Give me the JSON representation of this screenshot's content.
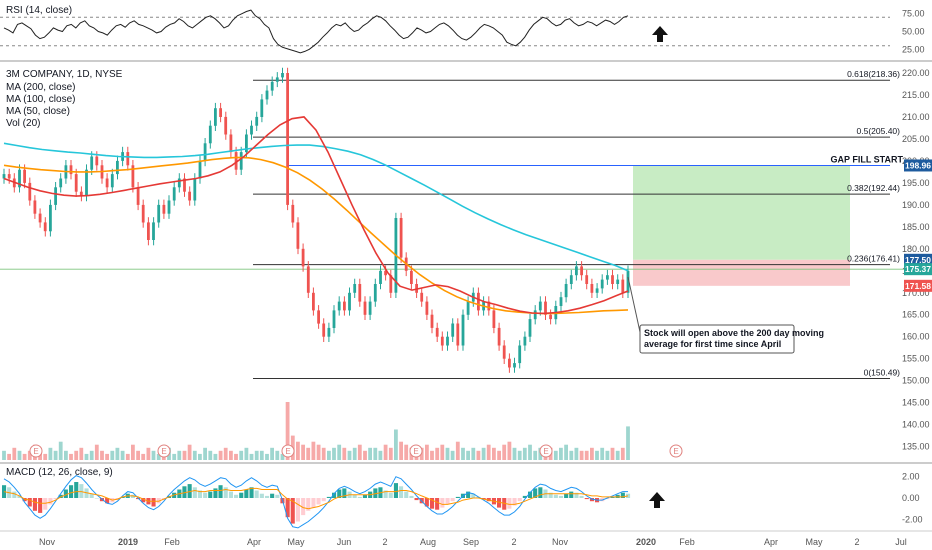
{
  "colors": {
    "up": "#26a69a",
    "down": "#ef5350",
    "ma200": "#26c6da",
    "ma100": "#ff9800",
    "ma50": "#e53935",
    "rsi": "#222222",
    "macd_line": "#2196f3",
    "signal_line": "#ff9800",
    "hline": "#333333",
    "gap_fill": "#2962ff",
    "green_zone": "#c8ecc4",
    "red_zone": "#f9c9cb",
    "text": "#131722",
    "axis": "#555555"
  },
  "icons": [
    "arrow-up-icon",
    "earnings-marker-icon"
  ],
  "chart_data": [
    {
      "type": "line",
      "title": "RSI (14, close)",
      "y_ticks": [
        "75.00",
        "50.00",
        "25.00"
      ],
      "ylim": [
        10,
        90
      ],
      "reference_lines": [
        70,
        30
      ],
      "series": [
        {
          "values": [
            55,
            52,
            48,
            60,
            62,
            58,
            54,
            45,
            40,
            42,
            48,
            55,
            52,
            50,
            58,
            60,
            55,
            62,
            65,
            58,
            55,
            50,
            48,
            45,
            52,
            58,
            60,
            56,
            62,
            65,
            60,
            58,
            55,
            52,
            48,
            50,
            56,
            60,
            62,
            68,
            64,
            58,
            55,
            60,
            65,
            70,
            72,
            68,
            62,
            55,
            58,
            66,
            72,
            75,
            78,
            80,
            72,
            68,
            60,
            55,
            40,
            32,
            28,
            26,
            24,
            22,
            20,
            22,
            25,
            30,
            35,
            42,
            48,
            55,
            60,
            58,
            62,
            55,
            50,
            52,
            58,
            62,
            68,
            72,
            70,
            65,
            58,
            52,
            45,
            40,
            42,
            48,
            55,
            52,
            48,
            50,
            55,
            60,
            62,
            58,
            52,
            45,
            40,
            38,
            42,
            48,
            55,
            60,
            58,
            55,
            50,
            45,
            35,
            32,
            30,
            35,
            42,
            52,
            60,
            65,
            70,
            68,
            62,
            58,
            60,
            66,
            68,
            62,
            58,
            60,
            64,
            62,
            58,
            62,
            66,
            64,
            60,
            64,
            70,
            72
          ]
        }
      ]
    },
    {
      "type": "line",
      "title": "3M COMPANY, 1D, NYSE",
      "legend": [
        "MA (200, close)",
        "MA (100, close)",
        "MA (50, close)",
        "Vol (20)"
      ],
      "x_labels": [
        "Nov",
        "2019",
        "Feb",
        "Apr",
        "May",
        "Jun",
        "2",
        "Aug",
        "Sep",
        "2",
        "Nov",
        "2020",
        "Feb",
        "Apr",
        "May",
        "2",
        "Jul"
      ],
      "y_ticks": [
        "220.00",
        "215.00",
        "210.00",
        "205.00",
        "200.00",
        "195.00",
        "190.00",
        "185.00",
        "180.00",
        "175.00",
        "170.00",
        "165.00",
        "160.00",
        "155.00",
        "150.00",
        "145.00",
        "140.00",
        "135.00"
      ],
      "ylim": [
        131.5,
        222.5
      ],
      "series": [
        {
          "name": "Price",
          "values": [
            197,
            196,
            194,
            198,
            195,
            191,
            188,
            186,
            184,
            190,
            194,
            196,
            199,
            197,
            193,
            192,
            198,
            201,
            199,
            196,
            194,
            197,
            200,
            202,
            199,
            194,
            190,
            186,
            182,
            186,
            190,
            188,
            191,
            194,
            196,
            193,
            191,
            196,
            200,
            204,
            208,
            212,
            210,
            206,
            202,
            198,
            202,
            206,
            208,
            210,
            214,
            216,
            218,
            219,
            220,
            190,
            186,
            180,
            176,
            170,
            166,
            163,
            160,
            162,
            166,
            168,
            166,
            170,
            172,
            168,
            165,
            168,
            172,
            175,
            174,
            170,
            187,
            178,
            175,
            172,
            170,
            168,
            165,
            162,
            160,
            158,
            160,
            163,
            158,
            165,
            168,
            170,
            166,
            168,
            166,
            162,
            158,
            155,
            153,
            154,
            158,
            160,
            164,
            166,
            168,
            165,
            164,
            167,
            169,
            172,
            174,
            176,
            174,
            172,
            170,
            171,
            173,
            174,
            172,
            173,
            170,
            175
          ]
        },
        {
          "name": "MA (200, close)",
          "values": [
            204,
            203.5,
            203,
            202.6,
            202.3,
            202,
            201.8,
            201.5,
            201.2,
            201,
            200.9,
            200.8,
            200.8,
            200.9,
            201,
            201.2,
            201.5,
            201.9,
            202.3,
            202.7,
            203,
            203.3,
            203.5,
            203.6,
            203.6,
            203.3,
            202.8,
            202.2,
            201.4,
            200.3,
            199,
            197.5,
            196,
            194.5,
            192.9,
            191.3,
            189.7,
            188.2,
            186.8,
            185.5,
            184.3,
            183.2,
            182.2,
            181.2,
            180.2,
            179.2,
            178.2,
            177.2,
            176.2,
            175
          ]
        },
        {
          "name": "MA (100, close)",
          "values": [
            199,
            198.6,
            198.3,
            198,
            197.8,
            197.6,
            197.5,
            197.5,
            197.6,
            197.8,
            198,
            198.3,
            198.6,
            198.9,
            199.2,
            199.5,
            199.9,
            200.3,
            200.6,
            200.8,
            200.7,
            200.3,
            199.6,
            198.6,
            197.3,
            195.6,
            193.6,
            191.3,
            188.8,
            186.2,
            183.6,
            181.1,
            178.6,
            176.3,
            174.1,
            172.2,
            170.5,
            169.1,
            168,
            167.1,
            166.4,
            165.9,
            165.6,
            165.4,
            165.3,
            165.3,
            165.4,
            165.5,
            165.7,
            165.9,
            166,
            166.1
          ]
        },
        {
          "name": "MA (50, close)",
          "values": [
            196,
            195,
            194,
            193.2,
            192.6,
            192.2,
            192,
            192.1,
            192.4,
            192.8,
            193.3,
            193.8,
            194.3,
            194.8,
            195.2,
            195.6,
            196,
            196.6,
            197.5,
            199,
            201,
            203.5,
            206,
            208.2,
            209.6,
            210,
            207,
            202,
            196,
            190,
            184.3,
            179,
            174.5,
            171.5,
            170.6,
            171.2,
            171.8,
            171.4,
            170.4,
            169.1,
            168,
            167.3,
            166.5,
            165.8,
            165.4,
            165.3,
            165.5,
            165.9,
            166.5,
            167.3,
            168.2,
            169.3,
            170.4
          ]
        }
      ],
      "levels": [
        {
          "label": "0.618(218.36)",
          "value": 218.36
        },
        {
          "label": "0.5(205.40)",
          "value": 205.4
        },
        {
          "label": "0.382(192.44)",
          "value": 192.44
        },
        {
          "label": "0.236(176.41)",
          "value": 176.41
        },
        {
          "label": "0(150.49)",
          "value": 150.49
        }
      ],
      "gap_fill": {
        "label": "GAP FILL START",
        "value": 198.96
      },
      "green_zone": [
        177.5,
        198.96
      ],
      "red_zone": [
        171.58,
        177.5
      ],
      "price_badges": [
        {
          "text": "198.96",
          "value": 198.96,
          "color": "#1e5b9e"
        },
        {
          "text": "177.50",
          "value": 177.5,
          "color": "#1e5b9e"
        },
        {
          "text": "175.37",
          "value": 175.37,
          "color": "#26a69a"
        },
        {
          "text": "171.58",
          "value": 171.58,
          "color": "#ef5350"
        }
      ],
      "annotation": "Stock will open above the 200 day moving average for first time since April",
      "earnings_marker_label": "E",
      "volume": [
        3,
        2,
        4,
        3,
        2,
        3,
        5,
        3,
        2,
        4,
        3,
        6,
        3,
        2,
        3,
        4,
        2,
        3,
        5,
        3,
        2,
        3,
        4,
        3,
        2,
        5,
        3,
        2,
        4,
        3,
        2,
        3,
        4,
        2,
        3,
        3,
        5,
        3,
        2,
        4,
        3,
        2,
        3,
        4,
        3,
        2,
        3,
        4,
        2,
        3,
        3,
        2,
        4,
        3,
        2,
        19,
        8,
        6,
        5,
        4,
        6,
        5,
        4,
        3,
        4,
        5,
        4,
        3,
        4,
        5,
        3,
        4,
        4,
        3,
        5,
        4,
        10,
        6,
        5,
        4,
        3,
        4,
        5,
        3,
        4,
        5,
        4,
        3,
        6,
        4,
        3,
        4,
        3,
        4,
        5,
        4,
        3,
        5,
        6,
        4,
        3,
        4,
        5,
        3,
        4,
        3,
        4,
        3,
        4,
        5,
        3,
        4,
        3,
        3,
        4,
        3,
        4,
        3,
        4,
        3,
        4,
        11
      ]
    },
    {
      "type": "bar",
      "title": "MACD (12, 26, close, 9)",
      "y_ticks": [
        "2.00",
        "0.00",
        "-2.00"
      ],
      "ylim": [
        -3,
        3
      ],
      "histogram": [
        1.2,
        1.0,
        0.6,
        0.2,
        -0.3,
        -0.8,
        -1.2,
        -1.4,
        -1.1,
        -0.6,
        -0.1,
        0.3,
        0.8,
        1.2,
        1.5,
        1.3,
        0.9,
        0.4,
        0,
        -0.3,
        -0.5,
        -0.4,
        -0.2,
        0.1,
        0.4,
        0.3,
        -0.1,
        -0.4,
        -0.6,
        -0.8,
        -0.5,
        -0.2,
        0.2,
        0.5,
        0.8,
        1.1,
        1.3,
        1.0,
        0.7,
        0.5,
        0.6,
        0.9,
        1.2,
        1.0,
        0.6,
        0.3,
        0.5,
        0.8,
        1.0,
        0.7,
        0.4,
        0.2,
        0.4,
        0.3,
        -0.5,
        -1.8,
        -2.4,
        -2.2,
        -1.6,
        -1.2,
        -0.9,
        -0.6,
        -0.3,
        0.1,
        0.5,
        0.8,
        0.9,
        0.6,
        0.3,
        0.1,
        0.3,
        0.6,
        0.9,
        1.0,
        0.7,
        0.5,
        1.4,
        1.1,
        0.6,
        0.2,
        -0.2,
        -0.5,
        -0.8,
        -1.0,
        -1.1,
        -0.9,
        -0.6,
        -0.3,
        0.1,
        0.4,
        0.6,
        0.4,
        0.1,
        -0.1,
        -0.3,
        -0.6,
        -0.9,
        -1.1,
        -1.0,
        -0.7,
        -0.3,
        0.2,
        0.6,
        0.9,
        1.0,
        0.8,
        0.5,
        0.3,
        0.2,
        0.4,
        0.6,
        0.5,
        0.2,
        -0.1,
        -0.3,
        -0.4,
        -0.3,
        -0.1,
        0.1,
        0.3,
        0.5,
        0.4
      ],
      "macd": [
        1.8,
        1.5,
        1.0,
        0.4,
        -0.4,
        -1.0,
        -1.6,
        -1.9,
        -1.6,
        -1.0,
        -0.3,
        0.4,
        1.1,
        1.7,
        2.1,
        1.9,
        1.4,
        0.8,
        0.3,
        -0.1,
        -0.5,
        -0.6,
        -0.3,
        0.2,
        0.6,
        0.5,
        0.0,
        -0.5,
        -0.9,
        -1.1,
        -0.8,
        -0.3,
        0.3,
        0.8,
        1.2,
        1.6,
        1.9,
        1.7,
        1.3,
        1.1,
        1.3,
        1.6,
        1.9,
        1.8,
        1.3,
        1.0,
        1.2,
        1.6,
        1.9,
        1.6,
        1.2,
        1.0,
        1.2,
        1.1,
        -0.2,
        -1.9,
        -2.7,
        -2.8,
        -2.5,
        -2.2,
        -1.8,
        -1.4,
        -0.9,
        -0.3,
        0.4,
        0.9,
        1.1,
        0.9,
        0.6,
        0.4,
        0.6,
        0.9,
        1.3,
        1.5,
        1.3,
        1.1,
        2.0,
        1.8,
        1.3,
        0.8,
        0.2,
        -0.3,
        -0.8,
        -1.2,
        -1.5,
        -1.5,
        -1.2,
        -0.8,
        -0.3,
        0.2,
        0.5,
        0.4,
        0.1,
        -0.2,
        -0.5,
        -0.9,
        -1.3,
        -1.6,
        -1.6,
        -1.3,
        -0.8,
        -0.1,
        0.5,
        1.0,
        1.3,
        1.2,
        0.9,
        0.7,
        0.6,
        0.8,
        1.0,
        0.9,
        0.6,
        0.2,
        -0.1,
        -0.2,
        -0.2,
        0.0,
        0.2,
        0.4,
        0.6,
        0.6
      ],
      "signal": [
        0.6,
        0.5,
        0.4,
        0.2,
        -0.1,
        -0.2,
        -0.4,
        -0.5,
        -0.5,
        -0.4,
        -0.2,
        0.1,
        0.3,
        0.5,
        0.6,
        0.6,
        0.5,
        0.4,
        0.3,
        0.2,
        0.0,
        -0.2,
        -0.1,
        0.1,
        0.2,
        0.2,
        0.1,
        -0.1,
        -0.3,
        -0.3,
        -0.3,
        -0.1,
        0.1,
        0.3,
        0.4,
        0.5,
        0.6,
        0.7,
        0.6,
        0.6,
        0.7,
        0.7,
        0.7,
        0.8,
        0.7,
        0.7,
        0.7,
        0.8,
        0.9,
        0.9,
        0.8,
        0.8,
        0.8,
        0.8,
        0.3,
        -0.1,
        -0.3,
        -0.6,
        -0.9,
        -1.0,
        -0.9,
        -0.8,
        -0.6,
        -0.4,
        -0.1,
        0.1,
        0.2,
        0.3,
        0.3,
        0.3,
        0.3,
        0.3,
        0.4,
        0.5,
        0.6,
        0.6,
        0.6,
        0.7,
        0.7,
        0.6,
        0.4,
        0.2,
        0.0,
        -0.2,
        -0.4,
        -0.6,
        -0.6,
        -0.5,
        -0.4,
        -0.2,
        -0.1,
        0.0,
        0.0,
        -0.1,
        -0.2,
        -0.3,
        -0.4,
        -0.5,
        -0.6,
        -0.6,
        -0.5,
        -0.3,
        -0.1,
        0.1,
        0.3,
        0.4,
        0.4,
        0.4,
        0.4,
        0.4,
        0.4,
        0.4,
        0.4,
        0.3,
        0.2,
        0.2,
        0.1,
        0.1,
        0.1,
        0.1,
        0.1,
        0.2
      ]
    }
  ]
}
